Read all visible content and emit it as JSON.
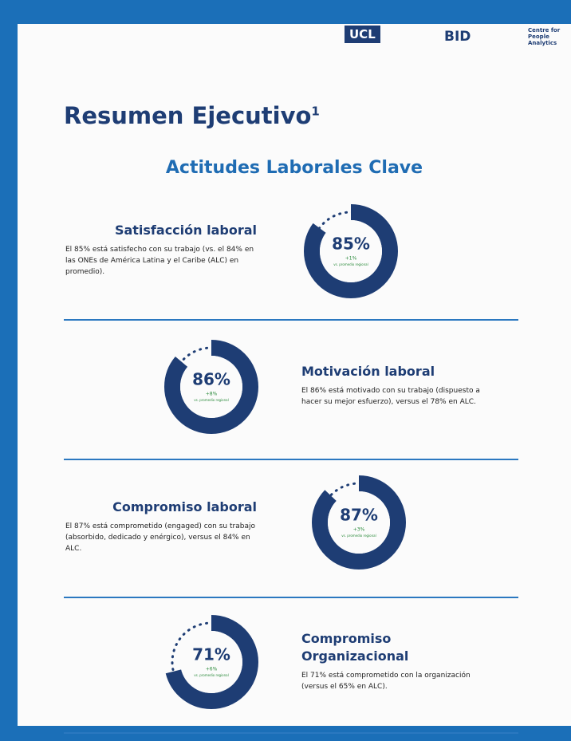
{
  "header": {
    "logos": [
      "UCL",
      "BID",
      "Centre for People Analytics"
    ]
  },
  "title": "Resumen Ejecutivo",
  "title_note": "1",
  "subtitle": "Actitudes Laborales Clave",
  "sections": [
    {
      "title": "Satisfacción laboral",
      "body": "El 85% está satisfecho con su trabajo (vs. el 84% en las ONEs de América Latina y el Caribe (ALC) en promedio).",
      "percent": 85,
      "percent_label": "85%",
      "delta": "+1%",
      "note": "vs. promedio regional"
    },
    {
      "title": "Motivación laboral",
      "body": "El 86% está motivado con su trabajo (dispuesto a hacer su mejor esfuerzo), versus el 78% en ALC.",
      "percent": 86,
      "percent_label": "86%",
      "delta": "+8%",
      "note": "vs. promedio regional"
    },
    {
      "title": "Compromiso laboral",
      "body": "El 87% está comprometido (engaged) con su trabajo (absorbido, dedicado y enérgico), versus el 84% en ALC.",
      "percent": 87,
      "percent_label": "87%",
      "delta": "+3%",
      "note": "vs. promedio regional"
    },
    {
      "title": "Compromiso Organizacional",
      "body": "El 71% está comprometido con la organización (versus el 65% en ALC).",
      "percent": 71,
      "percent_label": "71%",
      "delta": "+6%",
      "note": "vs. promedio regional"
    }
  ]
}
